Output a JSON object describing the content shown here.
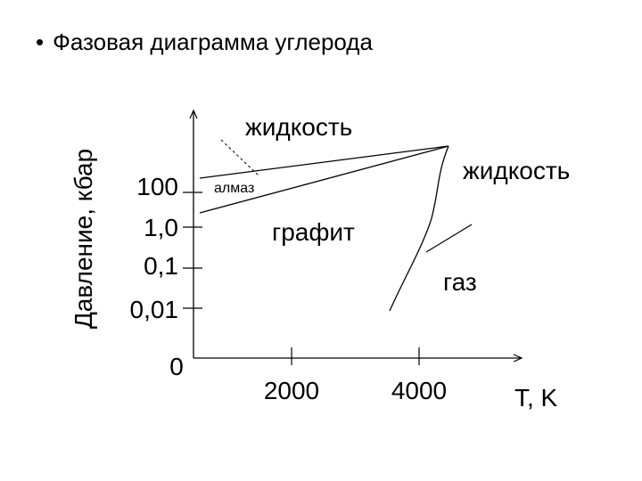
{
  "title": {
    "bullet": "•",
    "text": "Фазовая диаграмма углерода"
  },
  "diagram": {
    "y_axis_label": "Давление, кбар",
    "x_axis_label": "T, K",
    "y_ticks": [
      "100",
      "1,0",
      "0,1",
      "0,01"
    ],
    "origin_label": "0",
    "x_ticks": [
      "2000",
      "4000"
    ],
    "regions": {
      "liquid_top": "жидкость",
      "liquid_right": "жидкость",
      "diamond": "алмаз",
      "graphite": "графит",
      "gas": "газ"
    },
    "colors": {
      "ink": "#000000",
      "background": "#ffffff"
    }
  }
}
